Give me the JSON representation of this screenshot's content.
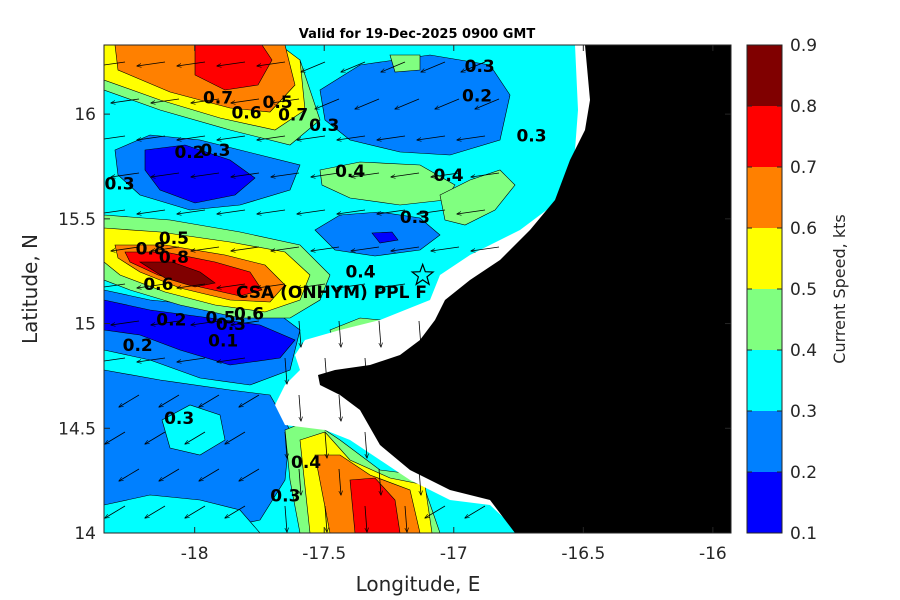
{
  "chart_data": {
    "type": "heatmap",
    "title": "Valid for 19-Dec-2025 0900 GMT",
    "xlabel": "Longitude, E",
    "ylabel": "Latitude, N",
    "xlim": [
      -18.35,
      -15.93
    ],
    "ylim": [
      14.0,
      16.33
    ],
    "x_ticks": [
      -18,
      -17.5,
      -17,
      -16.5,
      -16
    ],
    "x_tick_labels": [
      "-18",
      "-17.5",
      "-17",
      "-16.5",
      "-16"
    ],
    "y_ticks": [
      14,
      14.5,
      15,
      15.5,
      16
    ],
    "y_tick_labels": [
      "14",
      "14.5",
      "15",
      "15.5",
      "16"
    ],
    "colorbar": {
      "label": "Current Speed, kts",
      "levels": [
        0.1,
        0.2,
        0.3,
        0.4,
        0.5,
        0.6,
        0.7,
        0.8,
        0.9
      ],
      "tick_labels": [
        "0.1",
        "0.2",
        "0.3",
        "0.4",
        "0.5",
        "0.6",
        "0.7",
        "0.8",
        "0.9"
      ],
      "colors": [
        "#0000ff",
        "#0080ff",
        "#00ffff",
        "#80ff80",
        "#ffff00",
        "#ff8000",
        "#ff0000",
        "#800000"
      ]
    },
    "land_color": "#000000",
    "nodata_color": "#ffffff",
    "site": {
      "label": "CSA (ONHYM) PPL F",
      "lon": -17.12,
      "lat": 15.23,
      "marker": "star"
    },
    "contour_labels": [
      {
        "text": "0.3",
        "lon": -16.9,
        "lat": 16.2
      },
      {
        "text": "0.2",
        "lon": -16.91,
        "lat": 16.06
      },
      {
        "text": "0.3",
        "lon": -16.7,
        "lat": 15.87
      },
      {
        "text": "0.4",
        "lon": -17.02,
        "lat": 15.68
      },
      {
        "text": "0.7",
        "lon": -17.91,
        "lat": 16.05
      },
      {
        "text": "0.6",
        "lon": -17.8,
        "lat": 15.98
      },
      {
        "text": "0.5",
        "lon": -17.68,
        "lat": 16.03
      },
      {
        "text": "0.7",
        "lon": -17.62,
        "lat": 15.97
      },
      {
        "text": "0.3",
        "lon": -17.5,
        "lat": 15.92
      },
      {
        "text": "0.2",
        "lon": -18.02,
        "lat": 15.79
      },
      {
        "text": "0.3",
        "lon": -17.92,
        "lat": 15.8
      },
      {
        "text": "0.4",
        "lon": -17.4,
        "lat": 15.7
      },
      {
        "text": "0.3",
        "lon": -18.29,
        "lat": 15.64
      },
      {
        "text": "0.3",
        "lon": -17.15,
        "lat": 15.48
      },
      {
        "text": "0.5",
        "lon": -18.08,
        "lat": 15.38
      },
      {
        "text": "0.8",
        "lon": -18.17,
        "lat": 15.33
      },
      {
        "text": "0.8",
        "lon": -18.08,
        "lat": 15.29
      },
      {
        "text": "0.6",
        "lon": -18.14,
        "lat": 15.16
      },
      {
        "text": "0.4",
        "lon": -17.36,
        "lat": 15.22
      },
      {
        "text": "0.2",
        "lon": -18.09,
        "lat": 14.99
      },
      {
        "text": "0.5",
        "lon": -17.9,
        "lat": 15.0
      },
      {
        "text": "0.6",
        "lon": -17.79,
        "lat": 15.02
      },
      {
        "text": "0.3",
        "lon": -17.86,
        "lat": 14.97
      },
      {
        "text": "0.1",
        "lon": -17.89,
        "lat": 14.89
      },
      {
        "text": "0.2",
        "lon": -18.22,
        "lat": 14.87
      },
      {
        "text": "0.3",
        "lon": -18.06,
        "lat": 14.52
      },
      {
        "text": "0.4",
        "lon": -17.57,
        "lat": 14.31
      },
      {
        "text": "0.3",
        "lon": -17.65,
        "lat": 14.15
      }
    ]
  }
}
